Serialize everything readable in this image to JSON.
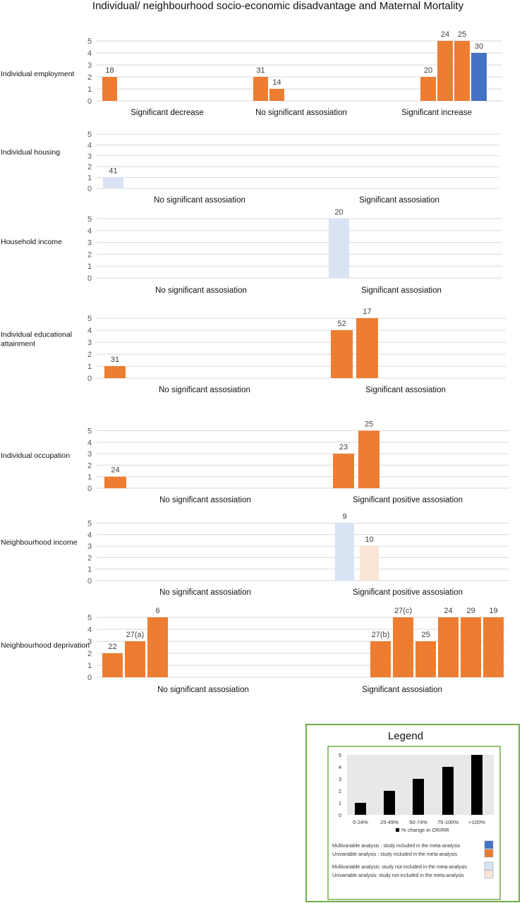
{
  "title": "Individual/ neighbourhood socio-economic disadvantage and Maternal Mortality",
  "colors": {
    "multivariable_included": "#4472c4",
    "univariable_included": "#ed7d31",
    "multivariable_not_included": "#dae3f3",
    "univariable_not_included": "#fbe5d6",
    "grid": "#d9d9d9",
    "legend_border": "#70ad47"
  },
  "chart_data": [
    {
      "type": "bar",
      "row_label": [
        "Individual employment"
      ],
      "ylim": [
        0,
        5
      ],
      "yticks": [
        "0",
        "1",
        "2",
        "3",
        "4",
        "5"
      ],
      "groups": [
        {
          "label": "Significant decrease",
          "bars": [
            {
              "label": "18",
              "value": 2,
              "category": "univariable_included"
            }
          ]
        },
        {
          "label": "No significant assosiation",
          "bars": [
            {
              "label": "31",
              "value": 2,
              "category": "univariable_included"
            },
            {
              "label": "14",
              "value": 1,
              "category": "univariable_included"
            }
          ]
        },
        {
          "label": "Significant increase",
          "bars": [
            {
              "label": "20",
              "value": 2,
              "category": "univariable_included"
            },
            {
              "label": "24",
              "value": 5,
              "category": "univariable_included"
            },
            {
              "label": "25",
              "value": 5,
              "category": "univariable_included"
            },
            {
              "label": "30",
              "value": 4,
              "category": "multivariable_included"
            }
          ]
        }
      ]
    },
    {
      "type": "bar",
      "row_label": [
        "Individual housing"
      ],
      "ylim": [
        0,
        5
      ],
      "yticks": [
        "0",
        "1",
        "2",
        "3",
        "4",
        "5"
      ],
      "groups": [
        {
          "label": "No significant assosiation",
          "bars": [
            {
              "label": "41",
              "value": 1,
              "category": "multivariable_not_included"
            }
          ]
        },
        {
          "label": "Significant assosiation",
          "bars": []
        }
      ]
    },
    {
      "type": "bar",
      "row_label": [
        "Household income"
      ],
      "ylim": [
        0,
        5
      ],
      "yticks": [
        "0",
        "1",
        "2",
        "3",
        "4",
        "5"
      ],
      "groups": [
        {
          "label": "No significant assosiation",
          "bars": []
        },
        {
          "label": "Significant assosiation",
          "bars": [
            {
              "label": "20",
              "value": 5,
              "category": "multivariable_not_included"
            }
          ]
        }
      ]
    },
    {
      "type": "bar",
      "row_label": [
        "Individual educational",
        "attainment"
      ],
      "ylim": [
        0,
        5
      ],
      "yticks": [
        "0",
        "1",
        "2",
        "3",
        "4",
        "5"
      ],
      "groups": [
        {
          "label": "No significant assosiation",
          "bars": [
            {
              "label": "31",
              "value": 1,
              "category": "univariable_included"
            }
          ]
        },
        {
          "label": "Significant assosiation",
          "bars": [
            {
              "label": "52",
              "value": 4,
              "category": "univariable_included"
            },
            {
              "label": "17",
              "value": 5,
              "category": "univariable_included"
            }
          ]
        }
      ]
    },
    {
      "type": "bar",
      "row_label": [
        "Individual occupation"
      ],
      "ylim": [
        0,
        5
      ],
      "yticks": [
        "0",
        "1",
        "2",
        "3",
        "4",
        "5"
      ],
      "groups": [
        {
          "label": "No significant assosiation",
          "bars": [
            {
              "label": "24",
              "value": 1,
              "category": "univariable_included"
            }
          ]
        },
        {
          "label": "Significant positive assosiation",
          "bars": [
            {
              "label": "23",
              "value": 3,
              "category": "univariable_included"
            },
            {
              "label": "25",
              "value": 5,
              "category": "univariable_included"
            }
          ]
        }
      ]
    },
    {
      "type": "bar",
      "row_label": [
        "Neighbourhood income"
      ],
      "ylim": [
        0,
        5
      ],
      "yticks": [
        "0",
        "1",
        "2",
        "3",
        "4",
        "5"
      ],
      "groups": [
        {
          "label": "No significant assosiation",
          "bars": []
        },
        {
          "label": "Significant positive assosiation",
          "bars": [
            {
              "label": "9",
              "value": 5,
              "category": "multivariable_not_included"
            },
            {
              "label": "10",
              "value": 3,
              "category": "univariable_not_included"
            }
          ]
        }
      ]
    },
    {
      "type": "bar",
      "row_label": [
        "Neighbourhood deprivation"
      ],
      "ylim": [
        0,
        5
      ],
      "yticks": [
        "0",
        "1",
        "2",
        "3",
        "4",
        "5"
      ],
      "groups": [
        {
          "label": "No significant assosiation",
          "bars": [
            {
              "label": "22",
              "value": 2,
              "category": "univariable_included"
            },
            {
              "label": "27(a)",
              "value": 3,
              "category": "univariable_included"
            },
            {
              "label": "6",
              "value": 5,
              "category": "univariable_included"
            }
          ]
        },
        {
          "label": "Significant assosiation",
          "bars": [
            {
              "label": "27(b)",
              "value": 3,
              "category": "univariable_included"
            },
            {
              "label": "27(c)",
              "value": 5,
              "category": "univariable_included"
            },
            {
              "label": "25",
              "value": 3,
              "category": "univariable_included"
            },
            {
              "label": "24",
              "value": 5,
              "category": "univariable_included"
            },
            {
              "label": "29",
              "value": 5,
              "category": "univariable_included"
            },
            {
              "label": "19",
              "value": 5,
              "category": "univariable_included"
            }
          ]
        }
      ]
    }
  ],
  "legend": {
    "title": "Legend",
    "scale_chart": {
      "type": "bar",
      "categories": [
        "0-24%",
        "25-49%",
        "50-74%",
        "75-100%",
        ">100%"
      ],
      "values": [
        1,
        2,
        3,
        4,
        5
      ],
      "ylim": [
        0,
        5
      ],
      "yticks": [
        "0",
        "1",
        "2",
        "3",
        "4",
        "5"
      ],
      "series_name": "% change in OR/RR"
    },
    "entries": [
      {
        "text": "Multivariable analysis : study included in the meta-analysis",
        "category": "multivariable_included"
      },
      {
        "text": "Univariable analysis : study included in the meta-analysis",
        "category": "univariable_included"
      },
      {
        "text": "Multivariable analysis: study not included in the meta-analysis",
        "category": "multivariable_not_included"
      },
      {
        "text": "Univariable analysis: study not included in the meta-analysis",
        "category": "univariable_not_included"
      }
    ]
  }
}
